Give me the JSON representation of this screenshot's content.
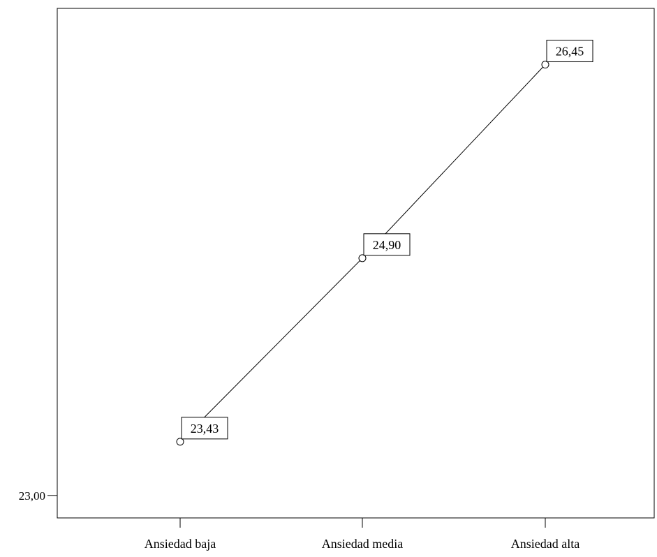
{
  "chart_data": {
    "type": "line",
    "categories": [
      "Ansiedad baja",
      "Ansiedad media",
      "Ansiedad alta"
    ],
    "values": [
      23.43,
      24.9,
      26.45
    ],
    "data_labels": [
      "23,43",
      "24,90",
      "26,45"
    ],
    "y_ticks": [
      {
        "value": 23.0,
        "label": "23,00"
      }
    ],
    "title": "",
    "xlabel": "",
    "ylabel": "",
    "ylim": [
      22.82,
      26.9
    ],
    "grid": false,
    "marker": "open-circle",
    "colors": {
      "line": "#000000",
      "axis": "#000000",
      "label_box_fill": "#ffffff"
    }
  }
}
